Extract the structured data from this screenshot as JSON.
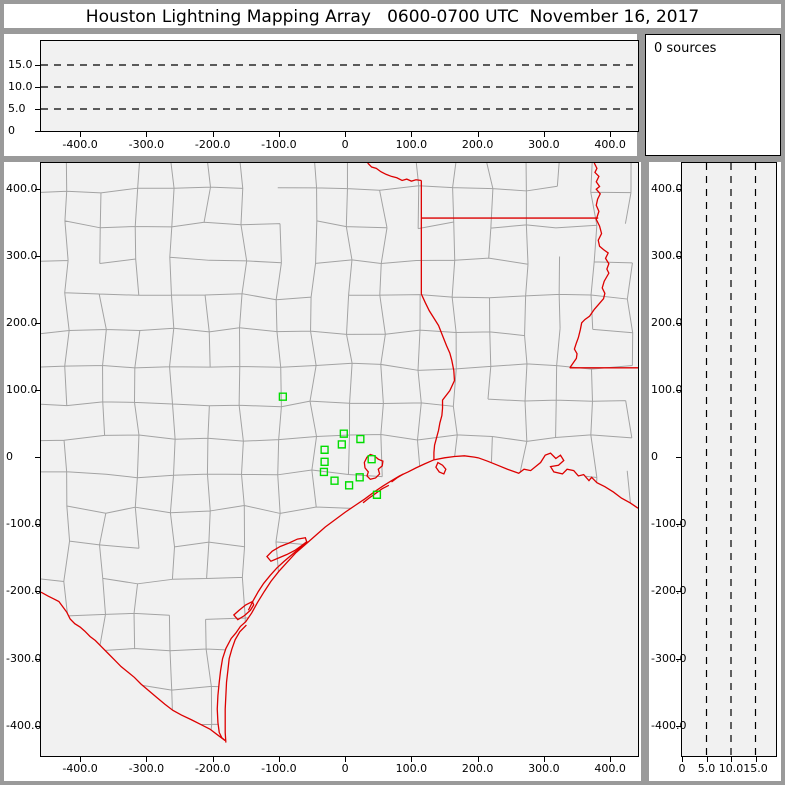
{
  "window": {
    "title": "Houston Lightning Mapping Array   0600-0700 UTC  November 16, 2017"
  },
  "sources_panel": {
    "label": "0 sources",
    "count": 0
  },
  "colors": {
    "frame_gray": "#9a9a9a",
    "plot_background": "#f1f1f1",
    "county_line": "#a3a3a3",
    "state_border_red": "#dd0000",
    "station_green": "#00dd00",
    "dashed_grid": "#000000"
  },
  "chart_data": [
    {
      "id": "alt-vs-ew",
      "type": "scatter",
      "role": "altitude (km) vs east-west distance (km), top panel",
      "x_range": [
        -459,
        442
      ],
      "y_range": [
        0,
        20.9
      ],
      "x_ticks": {
        "values": [
          -400,
          -300,
          -200,
          -100,
          0,
          100,
          200,
          300,
          400
        ],
        "labels": [
          "-400.0",
          "-300.0",
          "-200.0",
          "-100.0",
          "0",
          "100.0",
          "200.0",
          "300.0",
          "400.0"
        ]
      },
      "y_ticks": {
        "values": [
          0,
          5,
          10,
          15
        ],
        "labels": [
          "0",
          "5.0",
          "10.0",
          "15.0"
        ]
      },
      "gridlines_y": [
        5,
        10,
        15
      ],
      "grid_style": "dashed",
      "points": [],
      "note": "no lightning sources plotted"
    },
    {
      "id": "plan-view-map",
      "type": "scatter",
      "role": "plan-view map, km east/north of Houston LMA center",
      "x_range": [
        -459,
        442
      ],
      "y_range": [
        -445,
        438
      ],
      "x_ticks": {
        "values": [
          -400,
          -300,
          -200,
          -100,
          0,
          100,
          200,
          300,
          400
        ],
        "labels": [
          "-400.0",
          "-300.0",
          "-200.0",
          "-100.0",
          "0",
          "100.0",
          "200.0",
          "300.0",
          "400.0"
        ]
      },
      "y_ticks": {
        "values": [
          400,
          300,
          200,
          100,
          0,
          -100,
          -200,
          -300,
          -400
        ],
        "labels": [
          "400.0",
          "300.0",
          "200.0",
          "100.0",
          "0",
          "-100.0",
          "-200.0",
          "-300.0",
          "-400.0"
        ]
      },
      "stations_km": [
        [
          -94,
          90
        ],
        [
          -2,
          35
        ],
        [
          23,
          27
        ],
        [
          -5,
          19
        ],
        [
          -31,
          11
        ],
        [
          40,
          -3
        ],
        [
          -31,
          -7
        ],
        [
          -32,
          -22
        ],
        [
          -16,
          -35
        ],
        [
          22,
          -30
        ],
        [
          6,
          -42
        ],
        [
          48,
          -56
        ]
      ],
      "points": []
    },
    {
      "id": "alt-vs-ns",
      "type": "scatter",
      "role": "north-south distance (km) vs altitude (km), right panel",
      "x_range": [
        0,
        19.6
      ],
      "y_range": [
        -445,
        438
      ],
      "x_ticks": {
        "values": [
          0,
          5,
          10,
          15
        ],
        "labels": [
          "0",
          "5.0",
          "10.0",
          "15.0"
        ]
      },
      "y_ticks": {
        "values": [
          400,
          300,
          200,
          100,
          0,
          -100,
          -200,
          -300,
          -400
        ],
        "labels": [
          "400.0",
          "300.0",
          "200.0",
          "100.0",
          "0",
          "-100.0",
          "-200.0",
          "-300.0",
          "-400.0"
        ]
      },
      "gridlines_x": [
        5,
        10,
        15
      ],
      "grid_style": "dashed",
      "points": []
    }
  ],
  "map_layers": {
    "county_grid": {
      "spacing": 53,
      "jitter": 6,
      "skip": 0.12,
      "seed": 12
    },
    "borders": [
      {
        "name": "red-river-tx-ok-border",
        "points": [
          [
            34,
            438
          ],
          [
            40,
            432
          ],
          [
            47,
            430
          ],
          [
            54,
            425
          ],
          [
            62,
            421
          ],
          [
            70,
            418
          ],
          [
            78,
            416
          ],
          [
            86,
            412
          ],
          [
            93,
            414
          ],
          [
            100,
            411
          ],
          [
            107,
            413
          ],
          [
            115,
            412
          ]
        ]
      },
      {
        "name": "tx-ar-la-straight-border",
        "points": [
          [
            115,
            412
          ],
          [
            115,
            243
          ]
        ]
      },
      {
        "name": "ar-la-border",
        "points": [
          [
            115,
            356
          ],
          [
            382,
            356
          ]
        ]
      },
      {
        "name": "mississippi-river",
        "points": [
          [
            376,
            438
          ],
          [
            380,
            430
          ],
          [
            377,
            424
          ],
          [
            383,
            418
          ],
          [
            379,
            410
          ],
          [
            384,
            403
          ],
          [
            379,
            399
          ],
          [
            385,
            392
          ],
          [
            381,
            384
          ],
          [
            379,
            375
          ],
          [
            383,
            366
          ],
          [
            379,
            354
          ],
          [
            384,
            344
          ],
          [
            387,
            333
          ],
          [
            382,
            323
          ],
          [
            384,
            314
          ],
          [
            390,
            309
          ],
          [
            397,
            304
          ],
          [
            393,
            296
          ],
          [
            398,
            288
          ],
          [
            395,
            280
          ],
          [
            398,
            274
          ],
          [
            391,
            262
          ],
          [
            388,
            252
          ],
          [
            392,
            244
          ],
          [
            390,
            236
          ],
          [
            383,
            228
          ],
          [
            376,
            220
          ],
          [
            369,
            210
          ],
          [
            362,
            205
          ],
          [
            357,
            200
          ],
          [
            355,
            190
          ],
          [
            352,
            178
          ],
          [
            349,
            170
          ],
          [
            346,
            161
          ],
          [
            350,
            154
          ],
          [
            349,
            147
          ],
          [
            344,
            140
          ],
          [
            339,
            133
          ]
        ]
      },
      {
        "name": "ms-la-border",
        "points": [
          [
            339,
            133
          ],
          [
            445,
            133
          ]
        ]
      },
      {
        "name": "sabine-river-tx-la-border",
        "points": [
          [
            115,
            243
          ],
          [
            121,
            230
          ],
          [
            127,
            218
          ],
          [
            134,
            207
          ],
          [
            141,
            196
          ],
          [
            147,
            181
          ],
          [
            153,
            166
          ],
          [
            158,
            155
          ],
          [
            161,
            144
          ],
          [
            164,
            129
          ],
          [
            165,
            114
          ],
          [
            158,
            99
          ],
          [
            147,
            85
          ],
          [
            147,
            73
          ],
          [
            146,
            62
          ],
          [
            143,
            51
          ],
          [
            141,
            40
          ],
          [
            138,
            29
          ],
          [
            135,
            18
          ],
          [
            134,
            7
          ],
          [
            134,
            -4
          ]
        ]
      },
      {
        "name": "gulf-coastline",
        "points": [
          [
            442,
            -76
          ],
          [
            430,
            -68
          ],
          [
            417,
            -61
          ],
          [
            405,
            -52
          ],
          [
            392,
            -44
          ],
          [
            380,
            -38
          ],
          [
            372,
            -30
          ],
          [
            368,
            -35
          ],
          [
            360,
            -26
          ],
          [
            352,
            -28
          ],
          [
            345,
            -20
          ],
          [
            335,
            -18
          ],
          [
            328,
            -25
          ],
          [
            315,
            -22
          ],
          [
            310,
            -14
          ],
          [
            322,
            -12
          ],
          [
            330,
            -5
          ],
          [
            325,
            3
          ],
          [
            318,
            -2
          ],
          [
            310,
            6
          ],
          [
            302,
            3
          ],
          [
            295,
            -8
          ],
          [
            280,
            -20
          ],
          [
            270,
            -18
          ],
          [
            262,
            -24
          ],
          [
            245,
            -18
          ],
          [
            230,
            -12
          ],
          [
            215,
            -6
          ],
          [
            201,
            -1
          ],
          [
            195,
            0
          ],
          [
            180,
            2
          ],
          [
            165,
            1
          ],
          [
            150,
            -1
          ],
          [
            134,
            -4
          ],
          [
            120,
            -10
          ],
          [
            107,
            -16
          ],
          [
            95,
            -22
          ],
          [
            82,
            -28
          ],
          [
            70,
            -35
          ],
          [
            57,
            -43
          ],
          [
            45,
            -51
          ],
          [
            30,
            -62
          ],
          [
            15,
            -72
          ],
          [
            0,
            -82
          ],
          [
            -15,
            -93
          ],
          [
            -30,
            -104
          ],
          [
            -45,
            -117
          ],
          [
            -60,
            -130
          ],
          [
            -75,
            -143
          ],
          [
            -88,
            -157
          ],
          [
            -100,
            -170
          ],
          [
            -112,
            -185
          ],
          [
            -122,
            -200
          ],
          [
            -132,
            -216
          ],
          [
            -141,
            -232
          ],
          [
            -150,
            -245
          ],
          [
            -158,
            -252
          ],
          [
            -165,
            -262
          ],
          [
            -172,
            -270
          ],
          [
            -180,
            -285
          ],
          [
            -185,
            -300
          ],
          [
            -188,
            -318
          ],
          [
            -190,
            -335
          ],
          [
            -192,
            -355
          ],
          [
            -193,
            -375
          ],
          [
            -192,
            -395
          ],
          [
            -190,
            -410
          ],
          [
            -186,
            -418
          ],
          [
            -181,
            -422
          ]
        ]
      },
      {
        "name": "rio-grande-mexico-border",
        "points": [
          [
            -181,
            -422
          ],
          [
            -192,
            -414
          ],
          [
            -204,
            -405
          ],
          [
            -218,
            -398
          ],
          [
            -232,
            -391
          ],
          [
            -247,
            -384
          ],
          [
            -260,
            -377
          ],
          [
            -272,
            -368
          ],
          [
            -284,
            -358
          ],
          [
            -296,
            -348
          ],
          [
            -308,
            -338
          ],
          [
            -318,
            -328
          ],
          [
            -328,
            -320
          ],
          [
            -338,
            -312
          ],
          [
            -348,
            -302
          ],
          [
            -358,
            -292
          ],
          [
            -368,
            -282
          ],
          [
            -377,
            -273
          ],
          [
            -385,
            -267
          ],
          [
            -393,
            -259
          ],
          [
            -400,
            -253
          ],
          [
            -408,
            -248
          ],
          [
            -415,
            -241
          ],
          [
            -420,
            -231
          ],
          [
            -426,
            -223
          ],
          [
            -432,
            -215
          ],
          [
            -440,
            -211
          ],
          [
            -448,
            -207
          ],
          [
            -459,
            -201
          ]
        ]
      }
    ],
    "islands": [
      {
        "name": "bolivar-peninsula",
        "points": [
          [
            88,
            -25
          ],
          [
            78,
            -31
          ],
          [
            70,
            -37
          ]
        ]
      },
      {
        "name": "galveston-island",
        "points": [
          [
            66,
            -42
          ],
          [
            56,
            -47
          ],
          [
            46,
            -54
          ],
          [
            36,
            -61
          ],
          [
            27,
            -68
          ]
        ]
      },
      {
        "name": "matagorda-island",
        "points": [
          [
            -56,
            -126
          ],
          [
            -68,
            -135
          ],
          [
            -80,
            -145
          ],
          [
            -92,
            -155
          ],
          [
            -103,
            -165
          ],
          [
            -113,
            -176
          ],
          [
            -123,
            -188
          ],
          [
            -131,
            -200
          ],
          [
            -139,
            -214
          ],
          [
            -146,
            -228
          ]
        ]
      },
      {
        "name": "padre-island",
        "points": [
          [
            -149,
            -250
          ],
          [
            -159,
            -260
          ],
          [
            -166,
            -272
          ],
          [
            -171,
            -286
          ],
          [
            -175,
            -300
          ],
          [
            -177,
            -318
          ],
          [
            -179,
            -335
          ],
          [
            -180,
            -355
          ],
          [
            -181,
            -375
          ],
          [
            -181,
            -395
          ],
          [
            -181,
            -410
          ],
          [
            -180,
            -425
          ]
        ]
      }
    ],
    "bays": [
      {
        "name": "galveston-bay",
        "points": [
          [
            33,
            0
          ],
          [
            29,
            -8
          ],
          [
            30,
            -16
          ],
          [
            35,
            -22
          ],
          [
            33,
            -28
          ],
          [
            38,
            -33
          ],
          [
            46,
            -31
          ],
          [
            52,
            -25
          ],
          [
            50,
            -18
          ],
          [
            56,
            -13
          ],
          [
            57,
            -6
          ],
          [
            50,
            -3
          ],
          [
            44,
            2
          ],
          [
            38,
            4
          ]
        ]
      },
      {
        "name": "matagorda-bay",
        "points": [
          [
            -60,
            -120
          ],
          [
            -72,
            -122
          ],
          [
            -85,
            -128
          ],
          [
            -98,
            -133
          ],
          [
            -110,
            -140
          ],
          [
            -118,
            -148
          ],
          [
            -112,
            -155
          ],
          [
            -100,
            -150
          ],
          [
            -88,
            -145
          ],
          [
            -76,
            -139
          ],
          [
            -66,
            -132
          ],
          [
            -58,
            -126
          ]
        ]
      },
      {
        "name": "sabine-lake",
        "points": [
          [
            140,
            -8
          ],
          [
            147,
            -12
          ],
          [
            152,
            -18
          ],
          [
            149,
            -25
          ],
          [
            142,
            -22
          ],
          [
            137,
            -15
          ]
        ]
      },
      {
        "name": "corpus-christi-bay",
        "points": [
          [
            -140,
            -215
          ],
          [
            -150,
            -220
          ],
          [
            -160,
            -228
          ],
          [
            -168,
            -235
          ],
          [
            -162,
            -242
          ],
          [
            -152,
            -236
          ],
          [
            -143,
            -228
          ],
          [
            -138,
            -220
          ]
        ]
      }
    ]
  }
}
